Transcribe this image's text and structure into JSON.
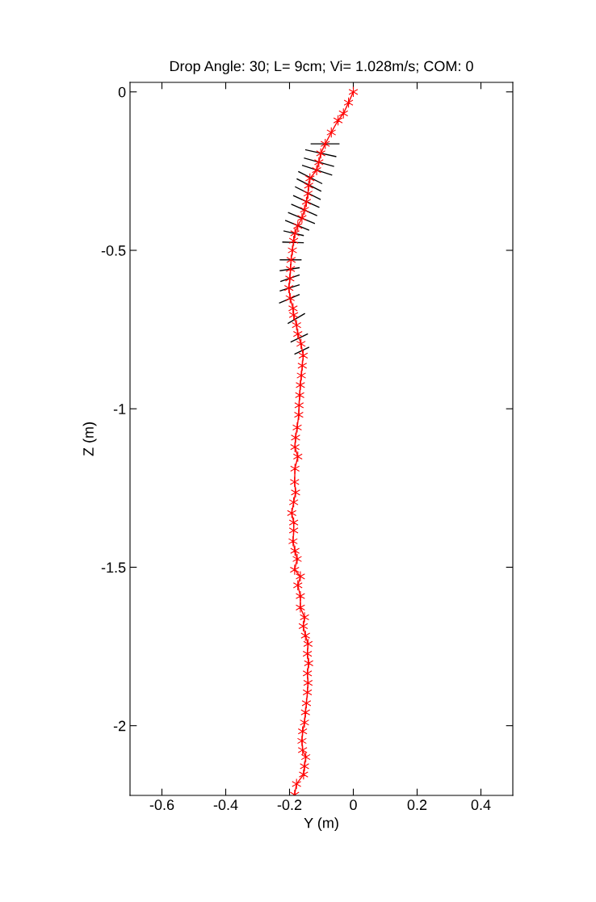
{
  "chart_data": {
    "type": "line",
    "title": "Drop Angle: 30; L= 9cm; Vi= 1.028m/s; COM: 0",
    "xlabel": "Y (m)",
    "ylabel": "Z (m)",
    "xlim": [
      -0.7,
      0.5
    ],
    "ylim": [
      -2.22,
      0.03
    ],
    "xticks": [
      -0.6,
      -0.4,
      -0.2,
      0,
      0.2,
      0.4
    ],
    "yticks": [
      -2,
      -1.5,
      -1,
      -0.5,
      0
    ],
    "grid": false,
    "legend": false,
    "marker": "cross",
    "line_style": "solid",
    "series": [
      {
        "color": "#000000",
        "marker": "none",
        "x": [
          -0.132,
          -0.045
        ],
        "values": [
          -0.164,
          -0.164
        ]
      },
      {
        "color": "#000000",
        "marker": "none",
        "x": [
          -0.149,
          -0.055
        ],
        "values": [
          -0.183,
          -0.204
        ]
      },
      {
        "color": "#000000",
        "marker": "none",
        "x": [
          -0.153,
          -0.062
        ],
        "values": [
          -0.209,
          -0.235
        ]
      },
      {
        "color": "#000000",
        "marker": "none",
        "x": [
          -0.159,
          -0.068
        ],
        "values": [
          -0.232,
          -0.262
        ]
      },
      {
        "color": "#000000",
        "marker": "none",
        "x": [
          -0.171,
          -0.099
        ],
        "values": [
          -0.252,
          -0.289
        ]
      },
      {
        "color": "#000000",
        "marker": "none",
        "x": [
          -0.176,
          -0.102
        ],
        "values": [
          -0.275,
          -0.313
        ]
      },
      {
        "color": "#000000",
        "marker": "none",
        "x": [
          -0.181,
          -0.104
        ],
        "values": [
          -0.3,
          -0.339
        ]
      },
      {
        "color": "#000000",
        "marker": "none",
        "x": [
          -0.187,
          -0.108
        ],
        "values": [
          -0.328,
          -0.364
        ]
      },
      {
        "color": "#000000",
        "marker": "none",
        "x": [
          -0.193,
          -0.115
        ],
        "values": [
          -0.355,
          -0.39
        ]
      },
      {
        "color": "#000000",
        "marker": "none",
        "x": [
          -0.203,
          -0.122
        ],
        "values": [
          -0.381,
          -0.415
        ]
      },
      {
        "color": "#000000",
        "marker": "none",
        "x": [
          -0.212,
          -0.14
        ],
        "values": [
          -0.406,
          -0.436
        ]
      },
      {
        "color": "#000000",
        "marker": "none",
        "x": [
          -0.217,
          -0.157
        ],
        "values": [
          -0.439,
          -0.453
        ]
      },
      {
        "color": "#000000",
        "marker": "none",
        "x": [
          -0.221,
          -0.157
        ],
        "values": [
          -0.474,
          -0.476
        ]
      },
      {
        "color": "#000000",
        "marker": "none",
        "x": [
          -0.229,
          -0.164
        ],
        "values": [
          -0.53,
          -0.53
        ]
      },
      {
        "color": "#000000",
        "marker": "none",
        "x": [
          -0.229,
          -0.17
        ],
        "values": [
          -0.564,
          -0.555
        ]
      },
      {
        "color": "#000000",
        "marker": "none",
        "x": [
          -0.227,
          -0.17
        ],
        "values": [
          -0.598,
          -0.578
        ]
      },
      {
        "color": "#000000",
        "marker": "none",
        "x": [
          -0.229,
          -0.17
        ],
        "values": [
          -0.628,
          -0.609
        ]
      },
      {
        "color": "#000000",
        "marker": "none",
        "x": [
          -0.231,
          -0.17
        ],
        "values": [
          -0.666,
          -0.64
        ]
      },
      {
        "color": "#000000",
        "marker": "none",
        "x": [
          -0.204,
          -0.153
        ],
        "values": [
          -0.73,
          -0.7
        ]
      },
      {
        "color": "#000000",
        "marker": "none",
        "x": [
          -0.195,
          -0.144
        ],
        "values": [
          -0.789,
          -0.764
        ]
      },
      {
        "color": "#000000",
        "marker": "none",
        "x": [
          -0.183,
          -0.14
        ],
        "values": [
          -0.827,
          -0.806
        ]
      },
      {
        "color": "#ff0000",
        "x": [
          0.0,
          -0.015,
          -0.031,
          -0.048,
          -0.069,
          -0.088,
          -0.102,
          -0.108,
          -0.115,
          -0.136,
          -0.14,
          -0.142,
          -0.147,
          -0.153,
          -0.161,
          -0.174,
          -0.183,
          -0.187,
          -0.191,
          -0.195,
          -0.197,
          -0.199,
          -0.202,
          -0.198,
          -0.189,
          -0.187,
          -0.178,
          -0.174,
          -0.164,
          -0.157,
          -0.16,
          -0.163,
          -0.166,
          -0.168,
          -0.17,
          -0.171,
          -0.176,
          -0.181,
          -0.183,
          -0.174,
          -0.183,
          -0.184,
          -0.181,
          -0.187,
          -0.193,
          -0.187,
          -0.187,
          -0.189,
          -0.183,
          -0.176,
          -0.184,
          -0.166,
          -0.174,
          -0.166,
          -0.166,
          -0.153,
          -0.157,
          -0.15,
          -0.142,
          -0.144,
          -0.14,
          -0.144,
          -0.142,
          -0.144,
          -0.147,
          -0.15,
          -0.153,
          -0.159,
          -0.161,
          -0.159,
          -0.149,
          -0.153,
          -0.156,
          -0.178,
          -0.184
        ],
        "values": [
          0.0,
          -0.034,
          -0.068,
          -0.09,
          -0.128,
          -0.164,
          -0.194,
          -0.222,
          -0.247,
          -0.273,
          -0.296,
          -0.321,
          -0.347,
          -0.372,
          -0.398,
          -0.423,
          -0.446,
          -0.47,
          -0.5,
          -0.53,
          -0.559,
          -0.589,
          -0.619,
          -0.651,
          -0.683,
          -0.704,
          -0.736,
          -0.764,
          -0.795,
          -0.832,
          -0.864,
          -0.895,
          -0.925,
          -0.957,
          -0.989,
          -1.019,
          -1.059,
          -1.091,
          -1.121,
          -1.151,
          -1.189,
          -1.231,
          -1.264,
          -1.295,
          -1.329,
          -1.359,
          -1.384,
          -1.418,
          -1.448,
          -1.474,
          -1.508,
          -1.529,
          -1.557,
          -1.591,
          -1.627,
          -1.658,
          -1.686,
          -1.716,
          -1.742,
          -1.773,
          -1.803,
          -1.835,
          -1.865,
          -1.895,
          -1.929,
          -1.958,
          -1.99,
          -2.018,
          -2.048,
          -2.077,
          -2.099,
          -2.128,
          -2.154,
          -2.184,
          -2.218
        ]
      }
    ]
  }
}
